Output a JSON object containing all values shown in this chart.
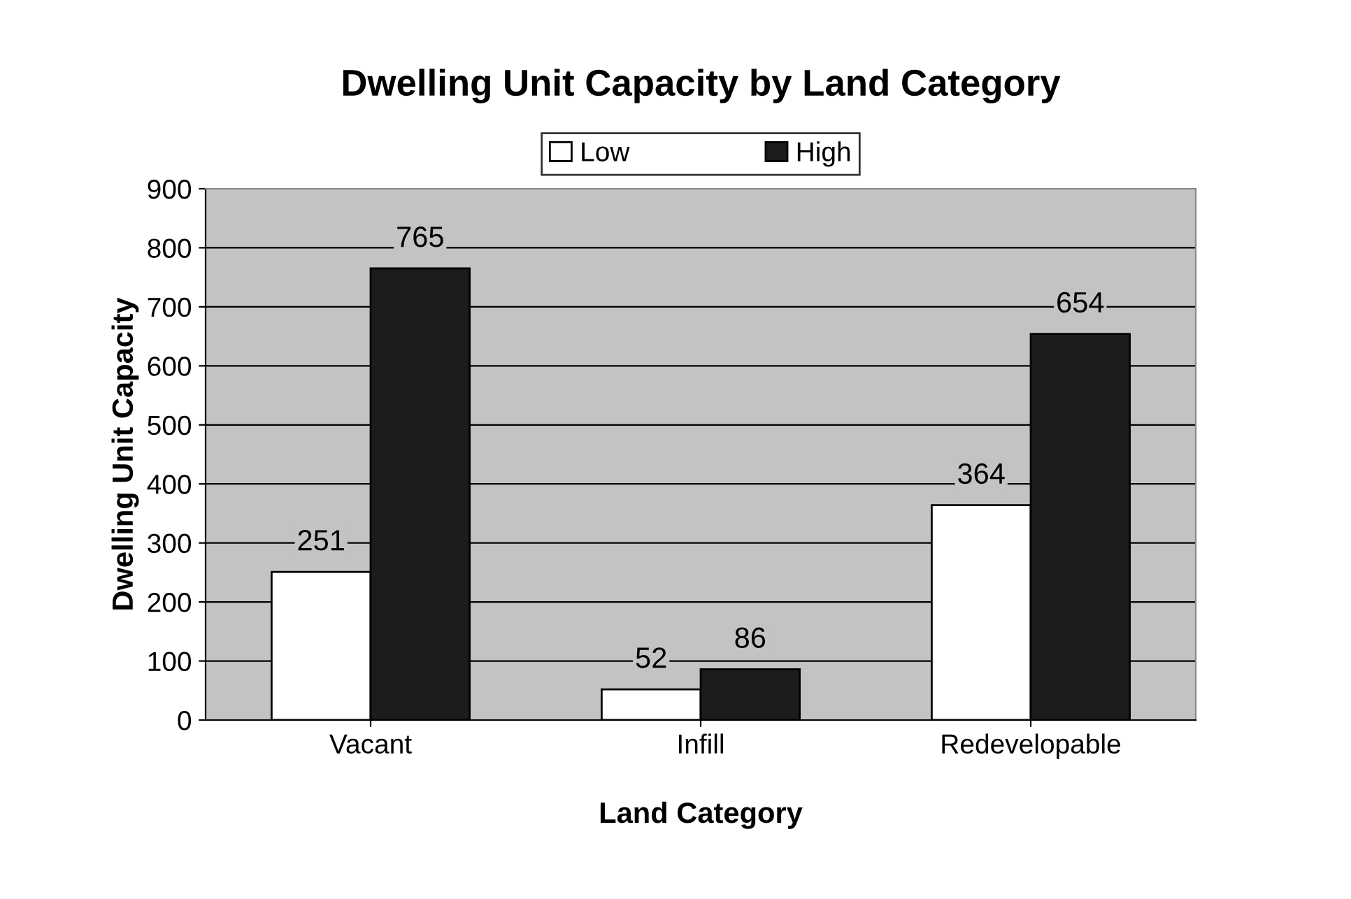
{
  "chart_data": {
    "type": "bar",
    "title": "Dwelling Unit Capacity by Land Category",
    "xlabel": "Land Category",
    "ylabel": "Dwelling Unit Capacity",
    "categories": [
      "Vacant",
      "Infill",
      "Redevelopable"
    ],
    "series": [
      {
        "name": "Low",
        "color": "#ffffff",
        "values": [
          251,
          52,
          364
        ]
      },
      {
        "name": "High",
        "color": "#1c1c1c",
        "values": [
          765,
          86,
          654
        ]
      }
    ],
    "ylim": [
      0,
      900
    ],
    "yticks": [
      0,
      100,
      200,
      300,
      400,
      500,
      600,
      700,
      800,
      900
    ],
    "grid": "y",
    "legend": "top",
    "data_labels": true
  }
}
